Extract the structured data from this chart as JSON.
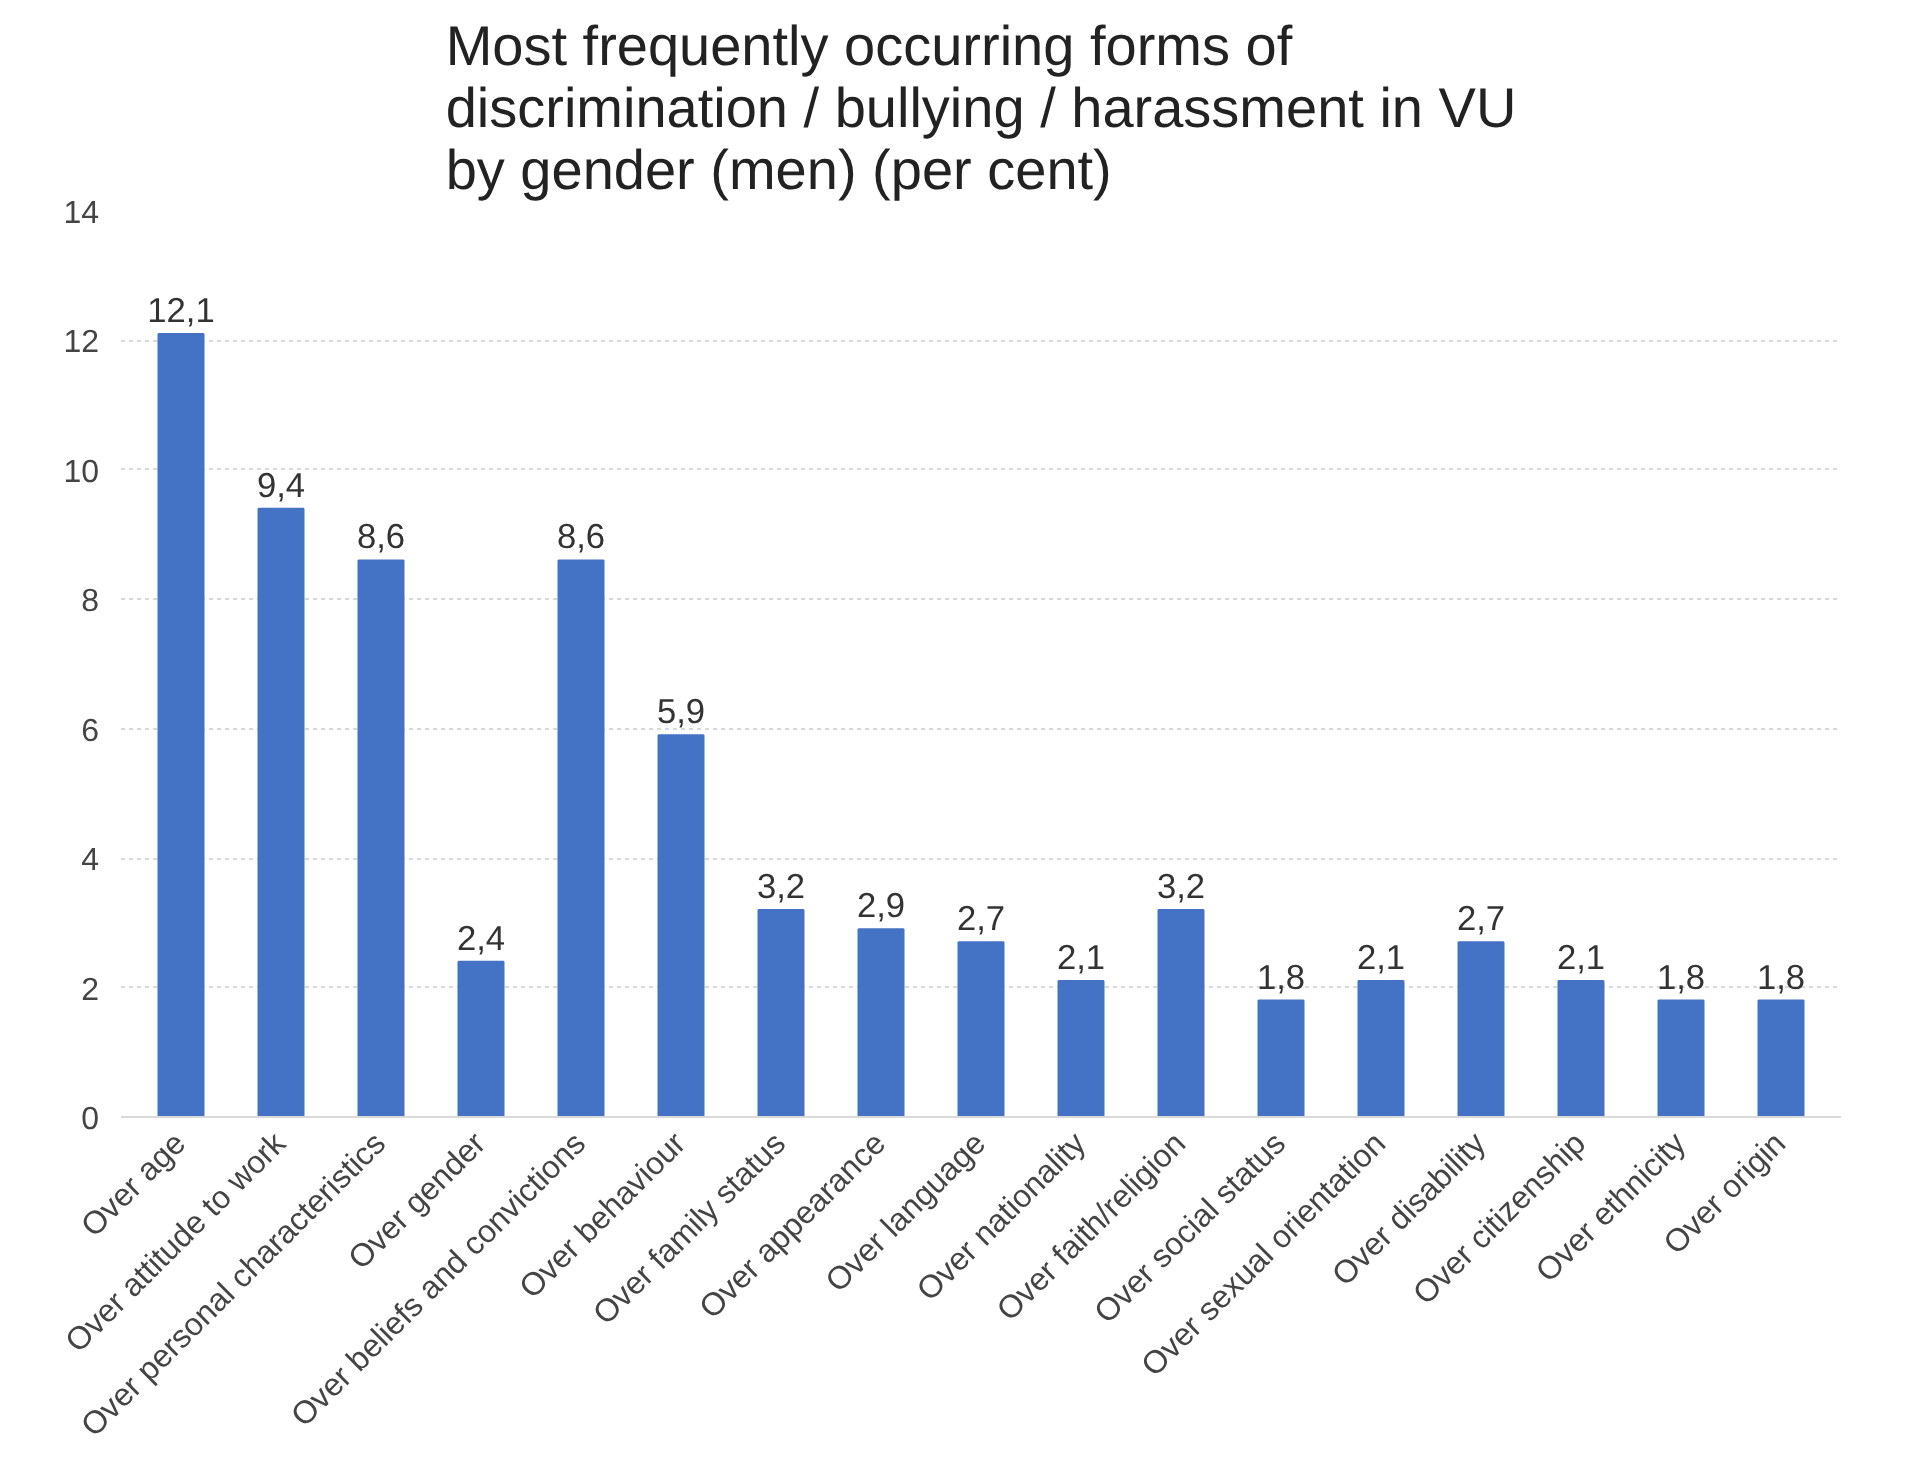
{
  "chart_data": {
    "type": "bar",
    "title": "Most frequently occurring forms of\ndiscrimination / bullying / harassment in VU\nby gender (men) (per cent)",
    "categories": [
      "Over age",
      "Over attitude to work",
      "Over personal characteristics",
      "Over gender",
      "Over beliefs and convictions",
      "Over behaviour",
      "Over family status",
      "Over appearance",
      "Over language",
      "Over nationality",
      "Over faith/religion",
      "Over social status",
      "Over sexual orientation",
      "Over disability",
      "Over citizenship",
      "Over ethnicity",
      "Over origin"
    ],
    "values": [
      12.1,
      9.4,
      8.6,
      2.4,
      8.6,
      5.9,
      3.2,
      2.9,
      2.7,
      2.1,
      3.2,
      1.8,
      2.1,
      2.7,
      2.1,
      1.8,
      1.8
    ],
    "value_labels": [
      "12,1",
      "9,4",
      "8,6",
      "2,4",
      "8,6",
      "5,9",
      "3,2",
      "2,9",
      "2,7",
      "2,1",
      "3,2",
      "1,8",
      "2,1",
      "2,7",
      "2,1",
      "1,8",
      "1,8"
    ],
    "color": "#4472c4",
    "ylim": [
      0,
      14
    ],
    "yticks": [
      0,
      2,
      4,
      6,
      8,
      10,
      12,
      14
    ],
    "grid": "y"
  }
}
